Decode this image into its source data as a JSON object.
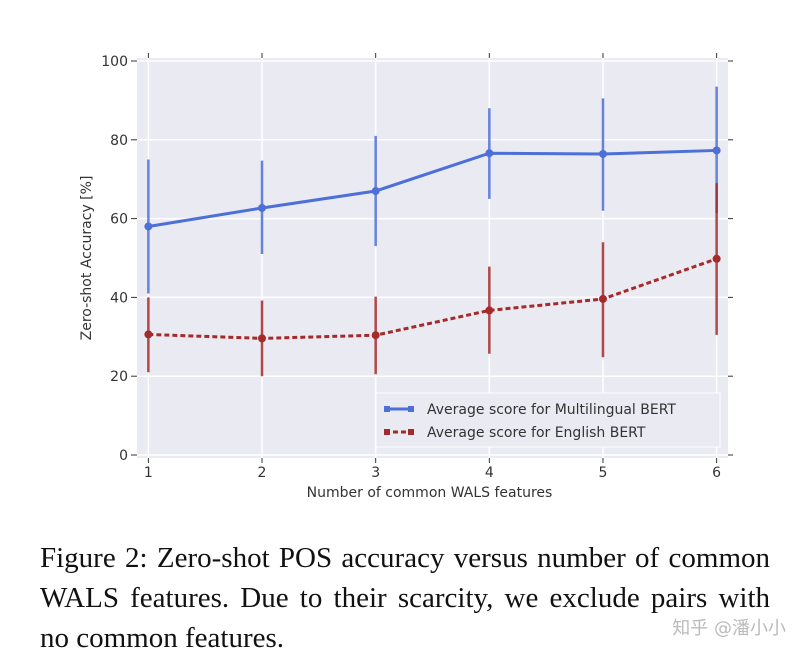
{
  "chart_data": {
    "type": "line",
    "xlabel": "Number of common WALS features",
    "ylabel": "Zero-shot Accuracy [%]",
    "x": [
      1,
      2,
      3,
      4,
      5,
      6
    ],
    "xticks": [
      "1",
      "2",
      "3",
      "4",
      "5",
      "6"
    ],
    "yticks": [
      "0",
      "20",
      "40",
      "60",
      "80",
      "100"
    ],
    "ylim": [
      0,
      100
    ],
    "xlim": [
      0.9,
      6.1
    ],
    "grid": true,
    "legend_position": "bottom-right",
    "series": [
      {
        "name": "Average score for Multilingual BERT",
        "color": "#4c6fd8",
        "style": "solid",
        "values": [
          58,
          62.7,
          67,
          76.6,
          76.4,
          77.3
        ],
        "err_low": [
          41,
          51,
          53,
          65,
          62,
          61.4
        ],
        "err_high": [
          75,
          74.7,
          81,
          88,
          90.5,
          93.5
        ]
      },
      {
        "name": "Average score for English BERT",
        "color": "#a52a2a",
        "style": "dashed",
        "values": [
          30.6,
          29.6,
          30.4,
          36.7,
          39.6,
          49.8
        ],
        "err_low": [
          21,
          20,
          20.5,
          25.7,
          24.8,
          30.5
        ],
        "err_high": [
          40,
          39.2,
          40.2,
          47.8,
          54,
          69
        ]
      }
    ]
  },
  "caption": "Figure 2: Zero-shot POS accuracy versus number of common WALS features. Due to their scarcity, we exclude pairs with no common features.",
  "watermark": "知乎 @潘小小"
}
